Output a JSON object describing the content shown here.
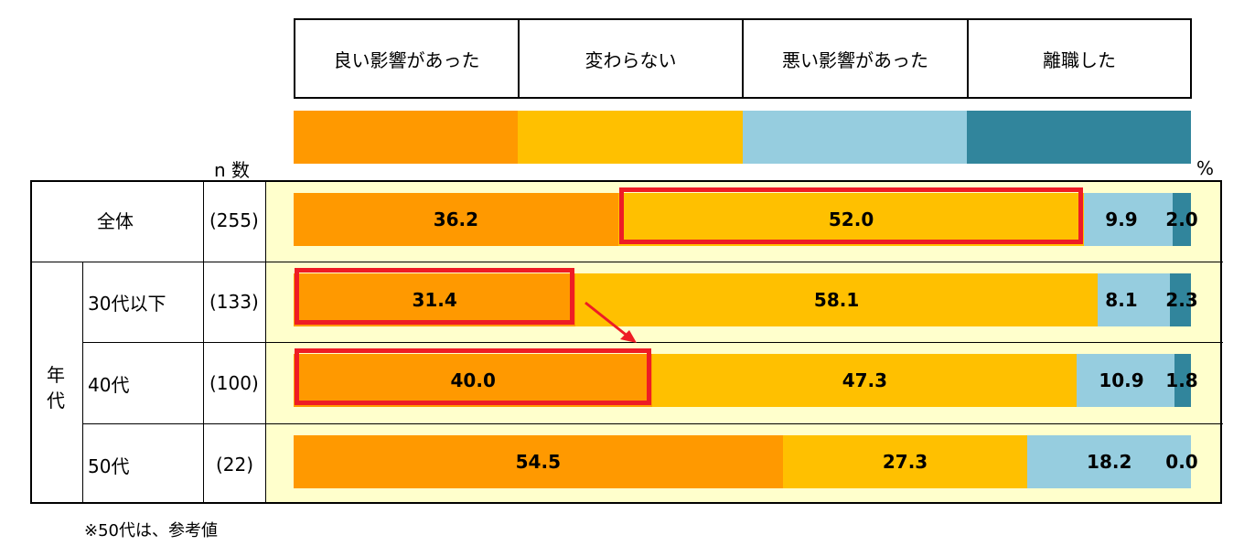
{
  "legend": [
    "良い影響があった",
    "変わらない",
    "悪い影響があった",
    "離職した"
  ],
  "n_header": "n 数",
  "unit": "%",
  "group_label_chars": [
    "年",
    "代"
  ],
  "footnote": "※50代は、参考値",
  "colors": [
    "#ff9900",
    "#ffc000",
    "#96cddf",
    "#31859c"
  ],
  "rows": [
    {
      "label": "全体",
      "n": "(255)"
    },
    {
      "label": "30代以下",
      "n": "(133)"
    },
    {
      "label": "40代",
      "n": "(100)"
    },
    {
      "label": "50代",
      "n": "(22)"
    }
  ],
  "chart_data": {
    "type": "bar",
    "stacked": true,
    "orientation": "horizontal",
    "categories": [
      "全体",
      "30代以下",
      "40代",
      "50代"
    ],
    "series": [
      {
        "name": "良い影響があった",
        "values": [
          36.2,
          31.4,
          40.0,
          54.5
        ],
        "labels": [
          "36.2",
          "31.4",
          "40.0",
          "54.5"
        ]
      },
      {
        "name": "変わらない",
        "values": [
          52.0,
          58.1,
          47.3,
          27.3
        ],
        "labels": [
          "52.0",
          "58.1",
          "47.3",
          "27.3"
        ]
      },
      {
        "name": "悪い影響があった",
        "values": [
          9.9,
          8.1,
          10.9,
          18.2
        ],
        "labels": [
          "9.9",
          "8.1",
          "10.9",
          "18.2"
        ]
      },
      {
        "name": "離職した",
        "values": [
          2.0,
          2.3,
          1.8,
          0.0
        ],
        "labels": [
          "2.0",
          "2.3",
          "1.8",
          "0.0"
        ]
      }
    ],
    "xlim": [
      0,
      100
    ],
    "highlights": [
      {
        "row": 0,
        "series": 1
      },
      {
        "row": 1,
        "series": 0
      },
      {
        "row": 2,
        "series": 0
      }
    ],
    "arrow": {
      "from_row": 1,
      "to_row": 2
    }
  }
}
